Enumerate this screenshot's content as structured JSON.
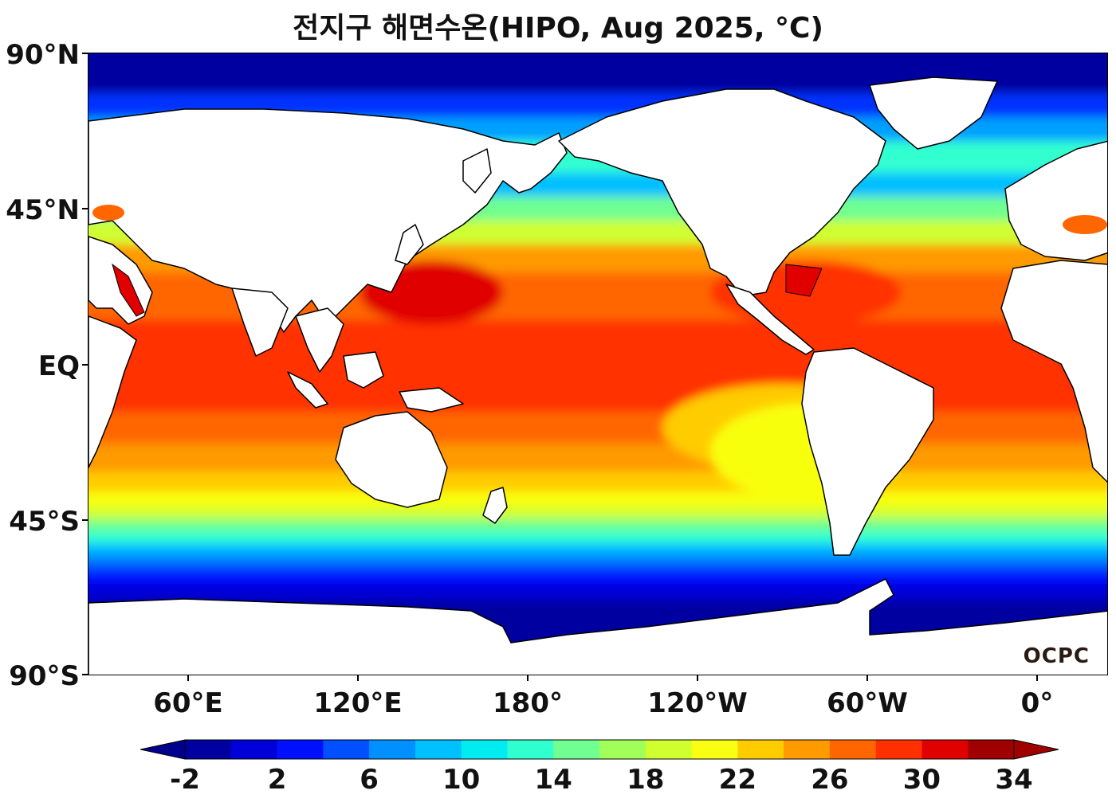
{
  "title": "전지구 해면수온(HIPO, Aug 2025, °C)",
  "logo_text": "OCPC",
  "lat_labels": [
    "90°N",
    "45°N",
    "EQ",
    "45°S",
    "90°S"
  ],
  "lon_labels": [
    "60°E",
    "120°E",
    "180°",
    "120°W",
    "60°W",
    "0°"
  ],
  "colorbar": {
    "tick_labels": [
      "-2",
      "2",
      "6",
      "10",
      "14",
      "18",
      "22",
      "26",
      "30",
      "34"
    ],
    "levels": [
      -2,
      0,
      2,
      4,
      6,
      8,
      10,
      12,
      14,
      16,
      18,
      20,
      22,
      24,
      26,
      28,
      30,
      32,
      34
    ],
    "under_color": "#00008c",
    "over_color": "#a00000",
    "colors": [
      "#0000a0",
      "#0000d8",
      "#0010ff",
      "#0050ff",
      "#0090ff",
      "#00c0ff",
      "#00ecf0",
      "#30ffd0",
      "#70ff90",
      "#a0ff58",
      "#d0ff30",
      "#f8ff10",
      "#ffcc00",
      "#ff9a00",
      "#ff6600",
      "#ff3000",
      "#e00000",
      "#a00000"
    ]
  },
  "map": {
    "projection": "equirectangular",
    "central_longitude": "160°E",
    "variable": "sea surface temperature",
    "units": "°C",
    "land_color": "#ffffff",
    "coastline_color": "#000000"
  }
}
